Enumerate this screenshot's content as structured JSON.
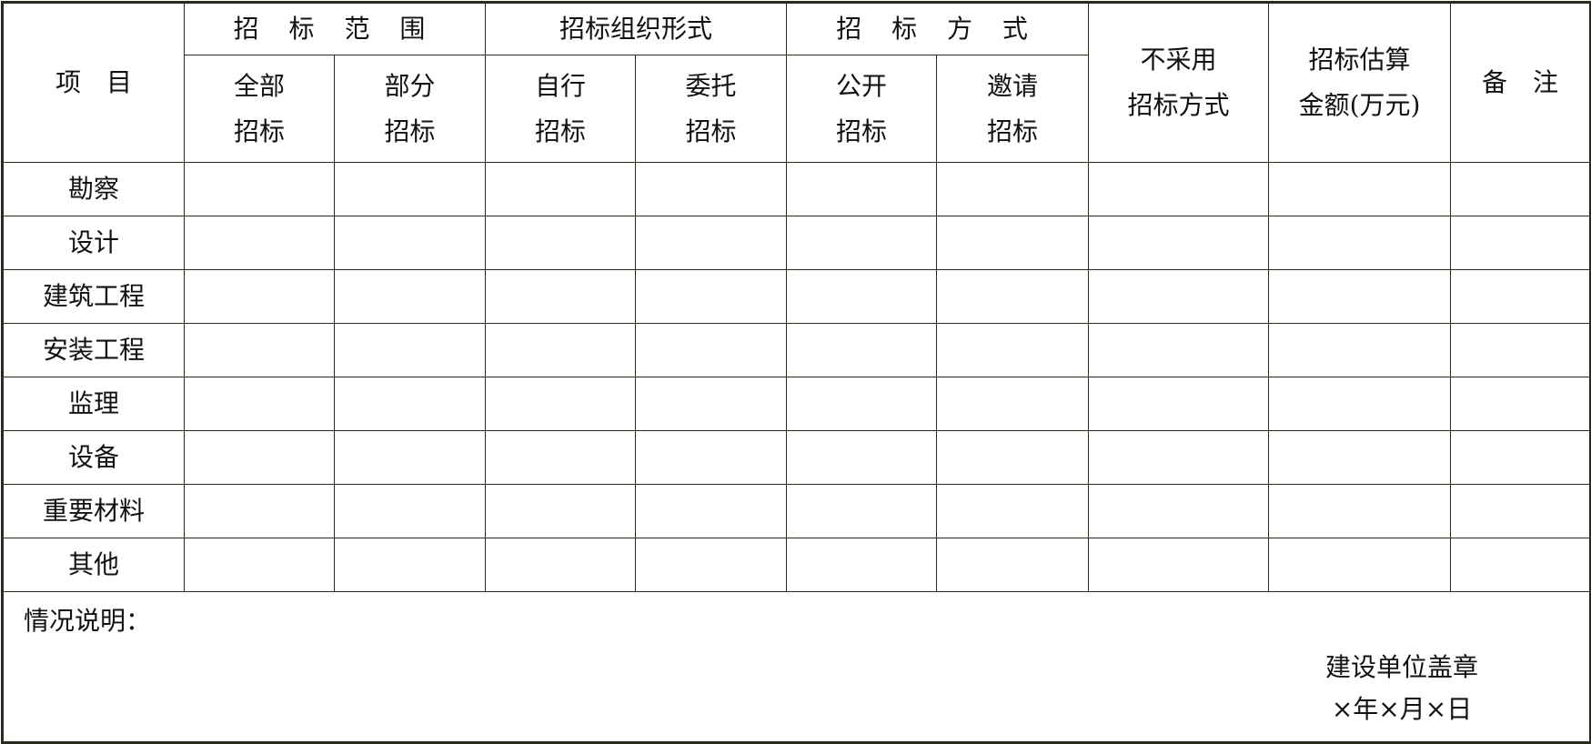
{
  "header": {
    "item": "项　目",
    "scope": "招 标 范 围",
    "scope_all": [
      "全部",
      "招标"
    ],
    "scope_part": [
      "部分",
      "招标"
    ],
    "org": "招标组织形式",
    "org_self": [
      "自行",
      "招标"
    ],
    "org_entrust": [
      "委托",
      "招标"
    ],
    "method": "招 标 方 式",
    "method_open": [
      "公开",
      "招标"
    ],
    "method_invite": [
      "邀请",
      "招标"
    ],
    "no_bidding": [
      "不采用",
      "招标方式"
    ],
    "estimate": [
      "招标估算",
      "金额(万元)"
    ],
    "remarks": "备　注"
  },
  "rows": [
    "勘察",
    "设计",
    "建筑工程",
    "安装工程",
    "监理",
    "设备",
    "重要材料",
    "其他"
  ],
  "footer": {
    "note_label": "情况说明：",
    "seal": "建设单位盖章",
    "date": "×年×月×日"
  }
}
